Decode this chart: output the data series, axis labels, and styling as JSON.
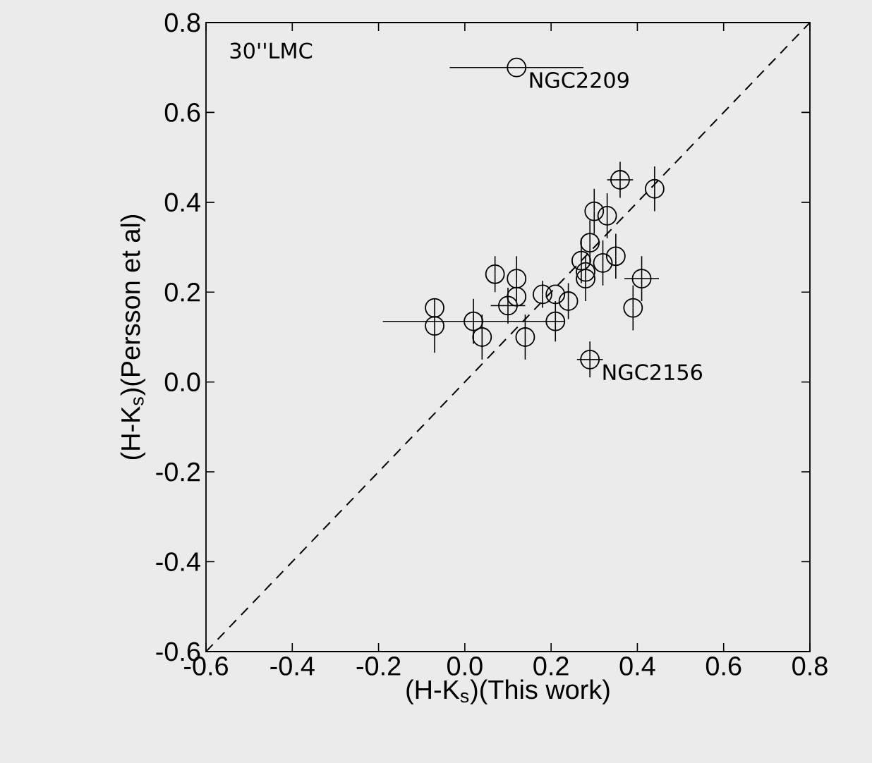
{
  "chart_data": {
    "type": "scatter",
    "xlabel": "(H-K$_{s}$)(This work)",
    "ylabel": "(H-K$_{s}$)(Persson et al)",
    "xlim": [
      -0.6,
      0.8
    ],
    "ylim": [
      -0.6,
      0.8
    ],
    "xticks": [
      -0.6,
      -0.4,
      -0.2,
      {
        "value": 0,
        "label": "0.0"
      },
      0.2,
      0.4,
      0.6,
      0.8
    ],
    "yticks": [
      -0.6,
      -0.4,
      -0.2,
      {
        "value": 0,
        "label": "0.0"
      },
      0.2,
      0.4,
      0.6,
      0.8
    ],
    "grid": false,
    "annotations": [
      "30''LMC",
      {
        "text": "NGC2209",
        "x": 0.12,
        "y": 0.7
      },
      {
        "text": "NGC2156",
        "x": 0.29,
        "y": 0.05
      }
    ],
    "series": [
      {
        "color": "#000000",
        "marker": "circle",
        "x": [
          0.12,
          0.36,
          0.44,
          0.3,
          0.33,
          0.29,
          0.27,
          0.35,
          0.32,
          0.28,
          0.28,
          0.41,
          0.07,
          0.12,
          0.12,
          0.1,
          0.18,
          0.21,
          0.24,
          0.39,
          -0.07,
          -0.07,
          0.02,
          0.04,
          0.14,
          0.21,
          0.29
        ],
        "values": [
          0.7,
          0.45,
          0.43,
          0.38,
          0.37,
          0.31,
          0.27,
          0.28,
          0.265,
          0.245,
          0.23,
          0.23,
          0.24,
          0.23,
          0.19,
          0.17,
          0.195,
          0.195,
          0.18,
          0.165,
          0.165,
          0.125,
          0.135,
          0.1,
          0.1,
          0.135,
          0.05
        ],
        "errors": [
          null,
          0.04,
          0.05,
          0.05,
          0.05,
          0.05,
          0.05,
          0.05,
          0.05,
          null,
          0.05,
          0.05,
          0.04,
          0.05,
          null,
          0.04,
          0.03,
          null,
          0.04,
          0.05,
          null,
          0.06,
          0.05,
          0.05,
          0.05,
          0.045,
          0.04
        ],
        "xerrors": [
          0.155,
          0.03,
          null,
          null,
          null,
          null,
          null,
          null,
          null,
          null,
          null,
          0.04,
          null,
          null,
          null,
          0.04,
          null,
          null,
          null,
          null,
          null,
          null,
          0.21,
          null,
          null,
          null,
          0.03
        ]
      },
      {
        "type": "line",
        "color": "#000000",
        "line_style": "dashed",
        "marker": "none",
        "x": [
          -0.6,
          0.8
        ],
        "values": [
          -0.6,
          0.8
        ]
      }
    ]
  }
}
